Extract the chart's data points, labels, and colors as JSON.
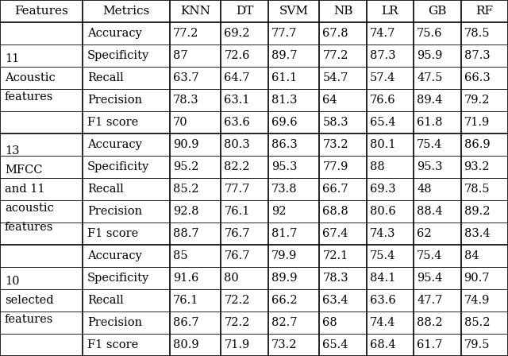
{
  "headers": [
    "Features",
    "Metrics",
    "KNN",
    "DT",
    "SVM",
    "NB",
    "LR",
    "GB",
    "RF"
  ],
  "sections": [
    {
      "feature_label": "11\nAcoustic\nfeatures",
      "rows": [
        [
          "Accuracy",
          "77.2",
          "69.2",
          "77.7",
          "67.8",
          "74.7",
          "75.6",
          "78.5"
        ],
        [
          "Specificity",
          "87",
          "72.6",
          "89.7",
          "77.2",
          "87.3",
          "95.9",
          "87.3"
        ],
        [
          "Recall",
          "63.7",
          "64.7",
          "61.1",
          "54.7",
          "57.4",
          "47.5",
          "66.3"
        ],
        [
          "Precision",
          "78.3",
          "63.1",
          "81.3",
          "64",
          "76.6",
          "89.4",
          "79.2"
        ],
        [
          "F1 score",
          "70",
          "63.6",
          "69.6",
          "58.3",
          "65.4",
          "61.8",
          "71.9"
        ]
      ]
    },
    {
      "feature_label": "13\nMFCC\nand 11\nacoustic\nfeatures",
      "rows": [
        [
          "Accuracy",
          "90.9",
          "80.3",
          "86.3",
          "73.2",
          "80.1",
          "75.4",
          "86.9"
        ],
        [
          "Specificity",
          "95.2",
          "82.2",
          "95.3",
          "77.9",
          "88",
          "95.3",
          "93.2"
        ],
        [
          "Recall",
          "85.2",
          "77.7",
          "73.8",
          "66.7",
          "69.3",
          "48",
          "78.5"
        ],
        [
          "Precision",
          "92.8",
          "76.1",
          "92",
          "68.8",
          "80.6",
          "88.4",
          "89.2"
        ],
        [
          "F1 score",
          "88.7",
          "76.7",
          "81.7",
          "67.4",
          "74.3",
          "62",
          "83.4"
        ]
      ]
    },
    {
      "feature_label": "10\nselected\nfeatures",
      "rows": [
        [
          "Accuracy",
          "85",
          "76.7",
          "79.9",
          "72.1",
          "75.4",
          "75.4",
          "84"
        ],
        [
          "Specificity",
          "91.6",
          "80",
          "89.9",
          "78.3",
          "84.1",
          "95.4",
          "90.7"
        ],
        [
          "Recall",
          "76.1",
          "72.2",
          "66.2",
          "63.4",
          "63.6",
          "47.7",
          "74.9"
        ],
        [
          "Precision",
          "86.7",
          "72.2",
          "82.7",
          "68",
          "74.4",
          "88.2",
          "85.2"
        ],
        [
          "F1 score",
          "80.9",
          "71.9",
          "73.2",
          "65.4",
          "68.4",
          "61.7",
          "79.5"
        ]
      ]
    }
  ],
  "font_size": 10.5,
  "bg_color": "#ffffff",
  "line_color": "#000000",
  "text_color": "#000000",
  "fig_width": 6.4,
  "fig_height": 4.48,
  "dpi": 100
}
